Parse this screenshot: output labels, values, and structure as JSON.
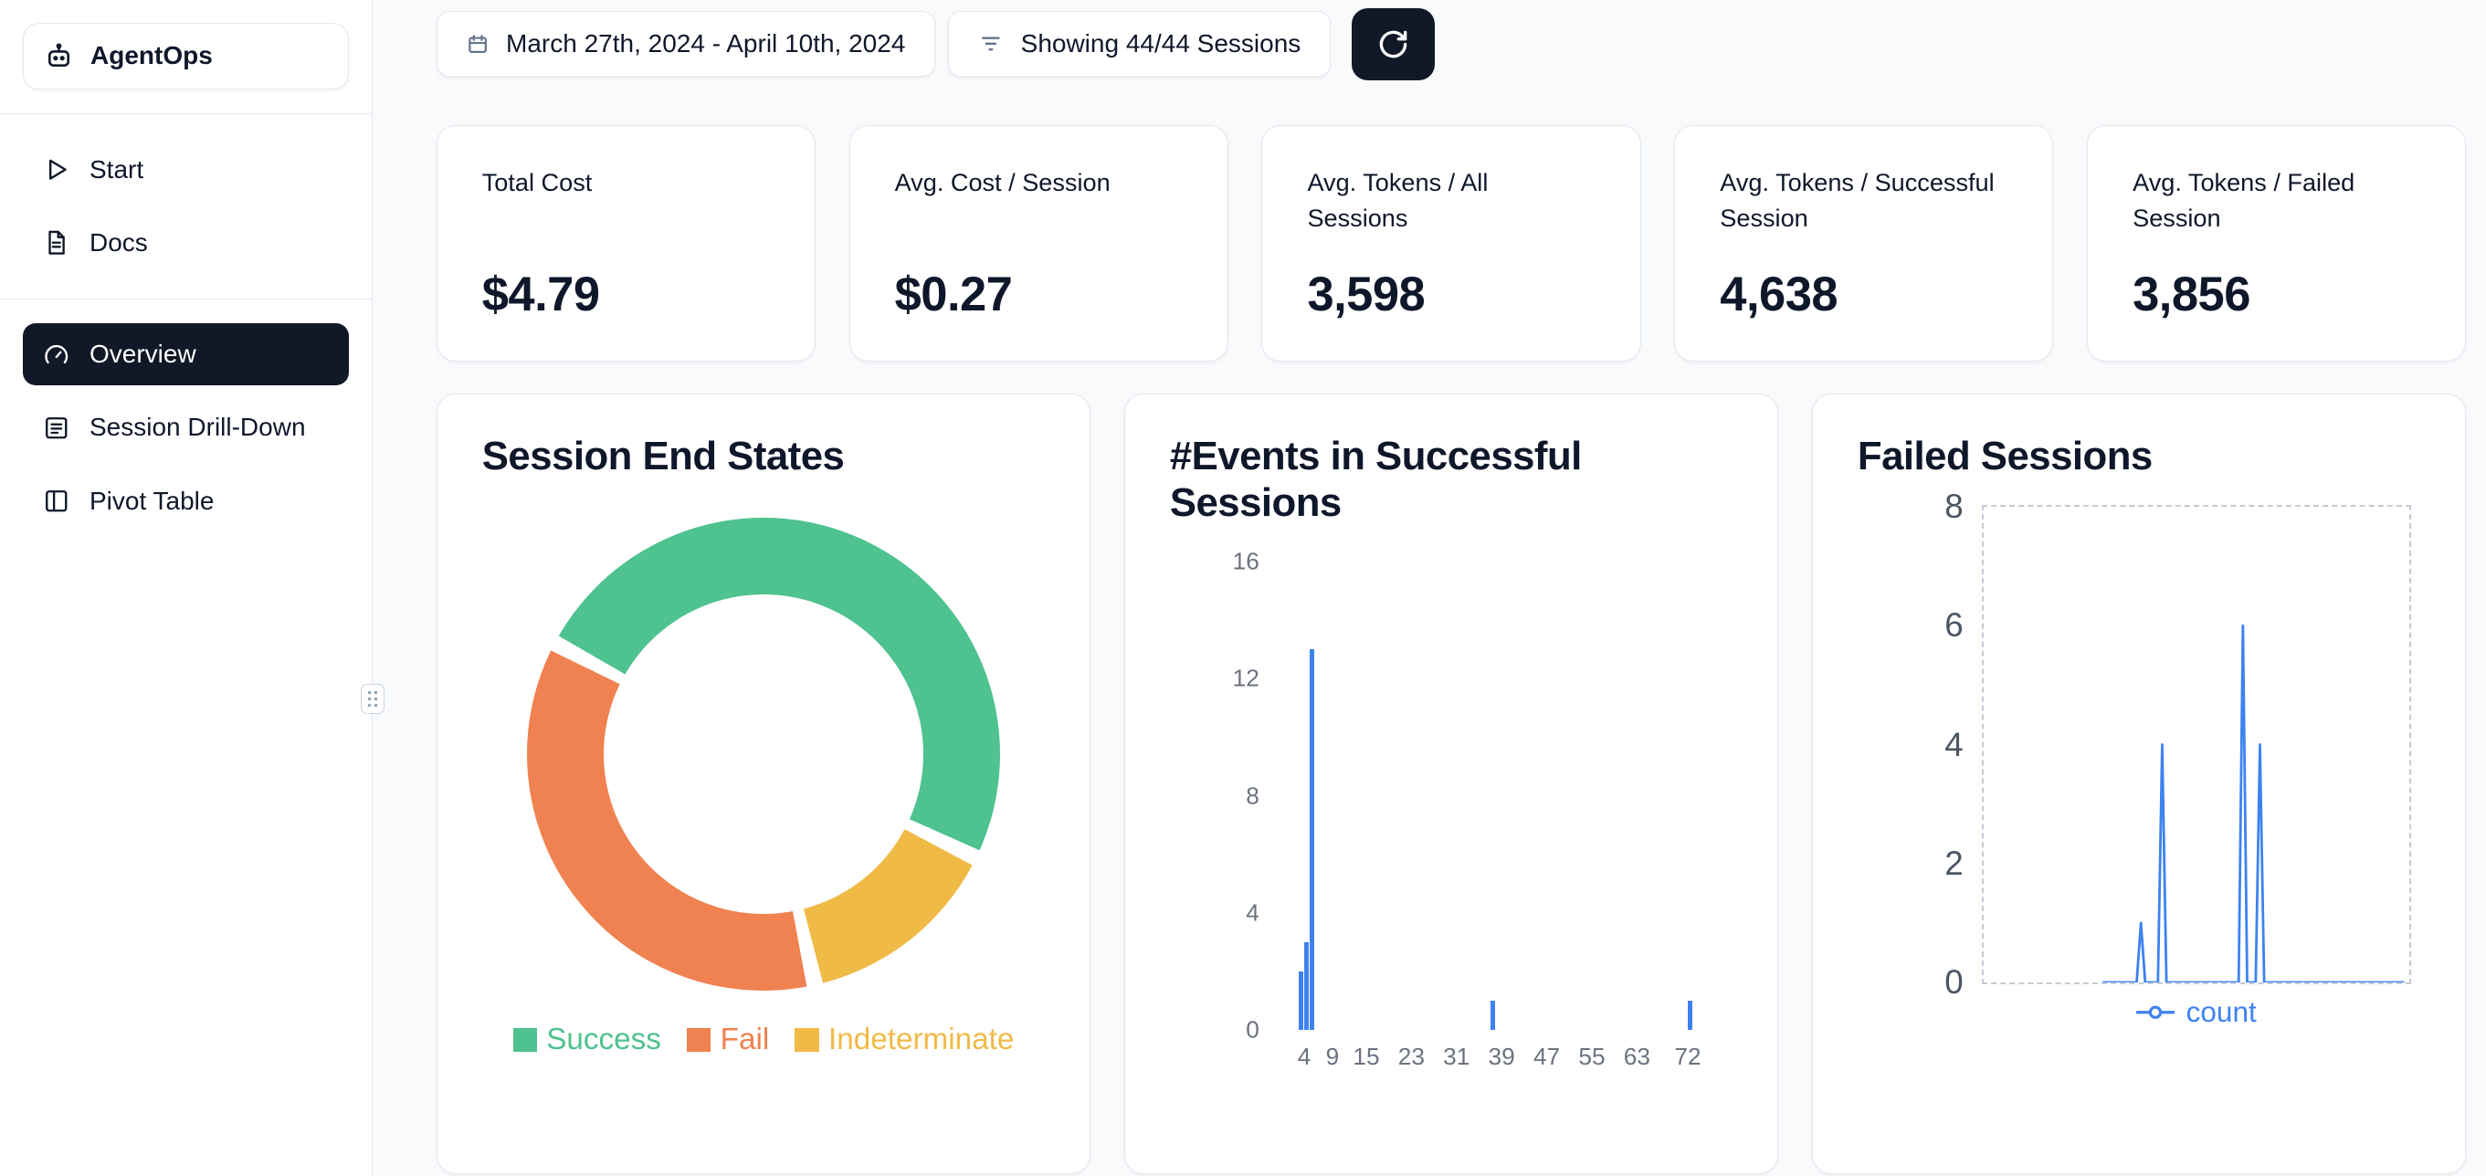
{
  "brand": {
    "name": "AgentOps"
  },
  "sidebar": {
    "links": [
      {
        "label": "Start",
        "icon": "play-icon"
      },
      {
        "label": "Docs",
        "icon": "docs-icon"
      }
    ],
    "nav": [
      {
        "label": "Overview",
        "icon": "gauge-icon",
        "active": true
      },
      {
        "label": "Session Drill-Down",
        "icon": "list-icon",
        "active": false
      },
      {
        "label": "Pivot Table",
        "icon": "table-icon",
        "active": false
      }
    ]
  },
  "topbar": {
    "date_range": "March 27th, 2024 - April 10th, 2024",
    "filter_label": "Showing 44/44 Sessions"
  },
  "stats": [
    {
      "label": "Total Cost",
      "value": "$4.79"
    },
    {
      "label": "Avg. Cost / Session",
      "value": "$0.27"
    },
    {
      "label": "Avg. Tokens / All Sessions",
      "value": "3,598"
    },
    {
      "label": "Avg. Tokens / Successful Session",
      "value": "4,638"
    },
    {
      "label": "Avg. Tokens / Failed Session",
      "value": "3,856"
    }
  ],
  "chart_data": [
    {
      "type": "pie",
      "title": "Session End States",
      "labels": [
        "Success",
        "Fail",
        "Indeterminate"
      ],
      "values": [
        22,
        16,
        6
      ],
      "colors": [
        "#4ec28f",
        "#ef8250",
        "#f0ba47"
      ],
      "hole": 0.675,
      "rotation_deg": 300,
      "segment_order": [
        0,
        2,
        1
      ],
      "legend_position": "bottom"
    },
    {
      "type": "bar",
      "title": "#Events in Successful Sessions",
      "x": [
        3,
        4,
        5,
        37,
        72
      ],
      "values": [
        2,
        3,
        13,
        1,
        1
      ],
      "xticks": [
        4,
        9,
        15,
        23,
        31,
        39,
        47,
        55,
        63,
        72
      ],
      "yticks": [
        0,
        4,
        8,
        12,
        16
      ],
      "xlim": [
        0,
        76
      ],
      "ylim": [
        0,
        16
      ],
      "bar_color": "#3d82f0",
      "grid": false
    },
    {
      "type": "line",
      "title": "Failed Sessions",
      "series": [
        {
          "name": "count",
          "color": "#3d82f0",
          "points": [
            [
              28,
              0
            ],
            [
              36,
              0
            ],
            [
              37,
              1
            ],
            [
              38,
              0
            ],
            [
              41,
              0
            ],
            [
              42,
              4
            ],
            [
              43,
              0
            ],
            [
              60,
              0
            ],
            [
              61,
              6
            ],
            [
              62,
              0
            ],
            [
              64,
              0
            ],
            [
              65,
              4
            ],
            [
              66,
              0
            ],
            [
              99,
              0
            ]
          ]
        }
      ],
      "yticks": [
        0,
        2,
        4,
        6,
        8
      ],
      "ylim": [
        0,
        8
      ],
      "xlim": [
        0,
        100
      ],
      "grid": "dashed-border",
      "legend_position": "bottom"
    }
  ]
}
